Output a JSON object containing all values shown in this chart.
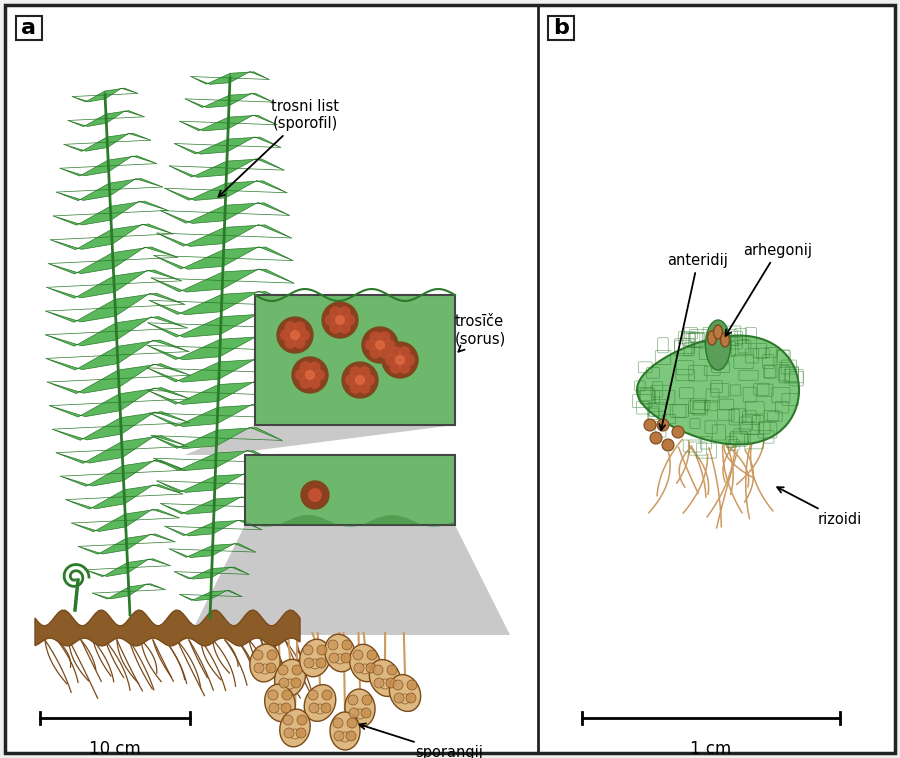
{
  "fig_width": 9.0,
  "fig_height": 7.58,
  "dpi": 100,
  "bg_color": "#f0f0f0",
  "border_color": "#222222",
  "white": "#ffffff",
  "green_dark": "#2a7a2a",
  "green_mid": "#3d9e3d",
  "green_light": "#5cb85c",
  "green_pale": "#8cc88c",
  "green_leaf": "#4aaa4a",
  "green_bg": "#5aaa5a",
  "green_tissue": "#6db86d",
  "brown_dark": "#7a4a1a",
  "brown_mid": "#b87840",
  "brown_light": "#cc9a60",
  "brown_pale": "#ddb880",
  "brown_rhizome": "#8b5c28",
  "gray_connector": "#b8b8b8",
  "sorus_color": "#8b4020",
  "sorus_inner": "#c05030",
  "label_sporofil": "trosni list\n(sporofil)",
  "label_sorus": "trosīče\n(sorus)",
  "label_sporangij": "sporangij",
  "label_anteridij": "anteridij",
  "label_arhegonij": "arhegonij",
  "label_rizoidi": "rizoidi",
  "scale_a": "10 cm",
  "scale_b": "1 cm",
  "panel_a": "a",
  "panel_b": "b"
}
